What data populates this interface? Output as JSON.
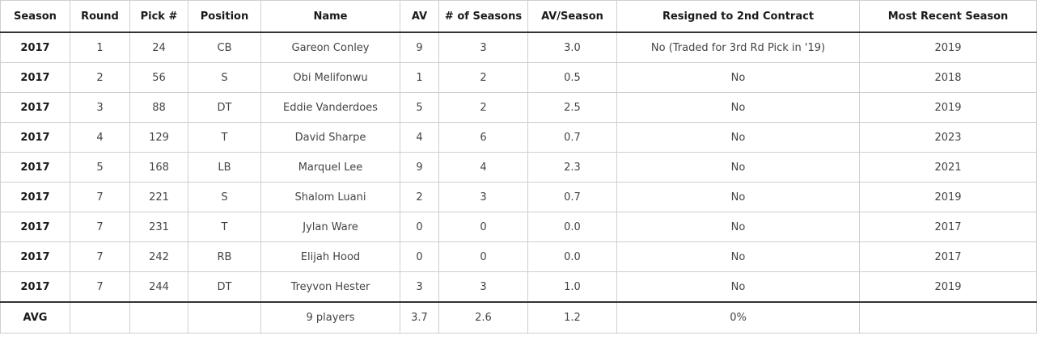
{
  "table": {
    "headers": [
      "Season",
      "Round",
      "Pick #",
      "Position",
      "Name",
      "AV",
      "# of Seasons",
      "AV/Season",
      "Resigned to 2nd Contract",
      "Most Recent Season"
    ],
    "rows": [
      [
        "2017",
        "1",
        "24",
        "CB",
        "Gareon Conley",
        "9",
        "3",
        "3.0",
        "No (Traded for 3rd Rd Pick in '19)",
        "2019"
      ],
      [
        "2017",
        "2",
        "56",
        "S",
        "Obi Melifonwu",
        "1",
        "2",
        "0.5",
        "No",
        "2018"
      ],
      [
        "2017",
        "3",
        "88",
        "DT",
        "Eddie Vanderdoes",
        "5",
        "2",
        "2.5",
        "No",
        "2019"
      ],
      [
        "2017",
        "4",
        "129",
        "T",
        "David Sharpe",
        "4",
        "6",
        "0.7",
        "No",
        "2023"
      ],
      [
        "2017",
        "5",
        "168",
        "LB",
        "Marquel Lee",
        "9",
        "4",
        "2.3",
        "No",
        "2021"
      ],
      [
        "2017",
        "7",
        "221",
        "S",
        "Shalom Luani",
        "2",
        "3",
        "0.7",
        "No",
        "2019"
      ],
      [
        "2017",
        "7",
        "231",
        "T",
        "Jylan Ware",
        "0",
        "0",
        "0.0",
        "No",
        "2017"
      ],
      [
        "2017",
        "7",
        "242",
        "RB",
        "Elijah Hood",
        "0",
        "0",
        "0.0",
        "No",
        "2017"
      ],
      [
        "2017",
        "7",
        "244",
        "DT",
        "Treyvon Hester",
        "3",
        "3",
        "1.0",
        "No",
        "2019"
      ]
    ],
    "footer": [
      "AVG",
      "",
      "",
      "",
      "9 players",
      "3.7",
      "2.6",
      "1.2",
      "0%",
      ""
    ]
  }
}
